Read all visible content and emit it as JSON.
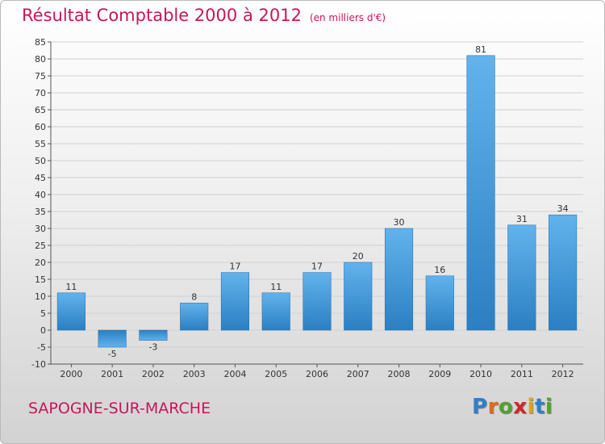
{
  "header": {
    "title": "Résultat Comptable 2000 à 2012",
    "subtitle": "(en milliers d'€)"
  },
  "footer": {
    "commune": "SAPOGNE-SUR-MARCHE",
    "logo": [
      "P",
      "r",
      "o",
      "x",
      "i",
      "t",
      "i"
    ],
    "logo_colors": [
      "#2f7fc8",
      "#e06a1a",
      "#53a22b",
      "#d2242a",
      "#e0a21a",
      "#2f7fc8",
      "#53a22b"
    ]
  },
  "chart_data": {
    "type": "bar",
    "title": "Résultat Comptable 2000 à 2012",
    "subtitle": "(en milliers d'€)",
    "xlabel": "",
    "ylabel": "",
    "categories": [
      "2000",
      "2001",
      "2002",
      "2003",
      "2004",
      "2005",
      "2006",
      "2007",
      "2008",
      "2009",
      "2010",
      "2011",
      "2012"
    ],
    "values": [
      11,
      -5,
      -3,
      8,
      17,
      11,
      17,
      20,
      30,
      16,
      81,
      31,
      34
    ],
    "value_labels": [
      "11",
      "-5",
      "-3",
      "8",
      "17",
      "11",
      "17",
      "20",
      "30",
      "16",
      "81",
      "31",
      "34"
    ],
    "ylim": [
      -10,
      85
    ],
    "yticks": [
      -10,
      -5,
      0,
      5,
      10,
      15,
      20,
      25,
      30,
      35,
      40,
      45,
      50,
      55,
      60,
      65,
      70,
      75,
      80,
      85
    ],
    "ytick_labels": [
      "-10",
      "-5",
      "0",
      "5",
      "10",
      "15",
      "20",
      "25",
      "30",
      "35",
      "40",
      "45",
      "50",
      "55",
      "60",
      "65",
      "70",
      "75",
      "80",
      "85"
    ],
    "grid": true,
    "bar_color": "#3b8fd6",
    "bar_color_light": "#5aaeea",
    "grid_color": "#d0d0d0"
  }
}
